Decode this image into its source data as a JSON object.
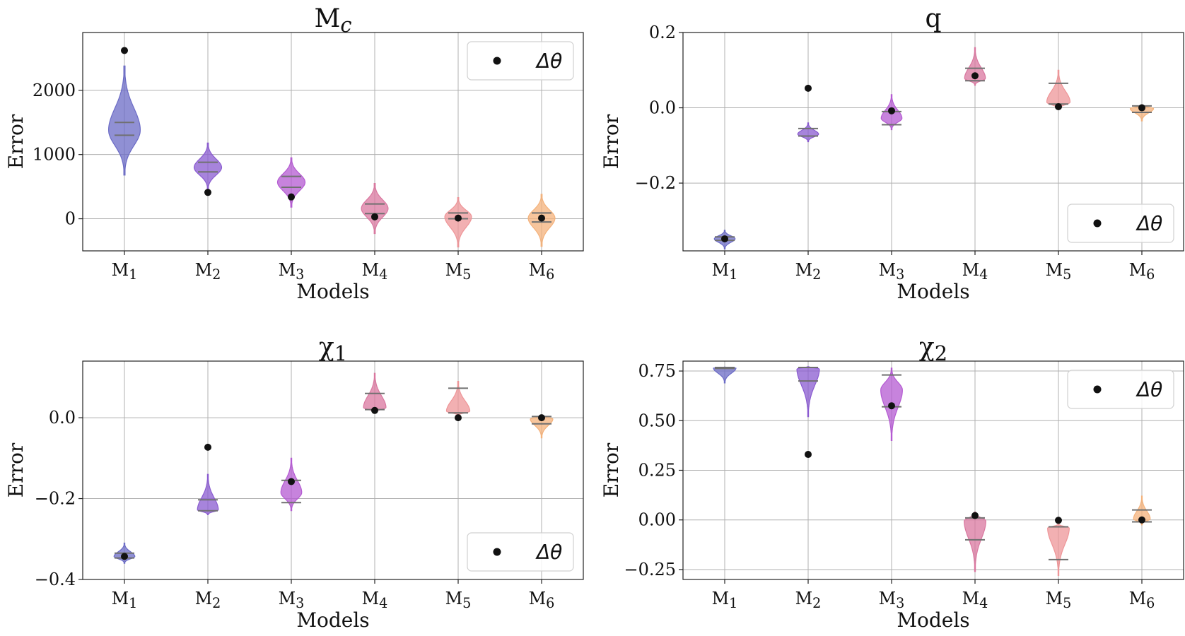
{
  "legend_label": "Δθ",
  "model_labels": [
    {
      "base": "M",
      "sub": "1"
    },
    {
      "base": "M",
      "sub": "2"
    },
    {
      "base": "M",
      "sub": "3"
    },
    {
      "base": "M",
      "sub": "4"
    },
    {
      "base": "M",
      "sub": "5"
    },
    {
      "base": "M",
      "sub": "6"
    }
  ],
  "colors": [
    "#6b6bc6",
    "#8a5bd0",
    "#b45ad2",
    "#d9779f",
    "#ee9598",
    "#f4b27b"
  ],
  "chart_data": [
    {
      "type": "violin",
      "title": {
        "base": "M",
        "sub": "c",
        "subItalic": true
      },
      "xlabel": "Models",
      "ylabel": "Error",
      "ylim": [
        -500,
        2900
      ],
      "yticks": [
        0,
        1000,
        2000
      ],
      "ytick_labels": [
        "0",
        "1000",
        "2000"
      ],
      "legend_position": "upper-right",
      "violins": [
        {
          "mode": 1380,
          "min": 680,
          "max": 2380,
          "q1": 1300,
          "q3": 1500,
          "width": 0.38
        },
        {
          "mode": 800,
          "min": 450,
          "max": 1180,
          "q1": 730,
          "q3": 880,
          "width": 0.33
        },
        {
          "mode": 570,
          "min": 180,
          "max": 950,
          "q1": 490,
          "q3": 660,
          "width": 0.33
        },
        {
          "mode": 160,
          "min": -230,
          "max": 550,
          "q1": 80,
          "q3": 230,
          "width": 0.32
        },
        {
          "mode": 30,
          "min": -440,
          "max": 330,
          "q1": 0,
          "q3": 90,
          "width": 0.32
        },
        {
          "mode": 10,
          "min": -430,
          "max": 380,
          "q1": -50,
          "q3": 90,
          "width": 0.32
        }
      ],
      "points": [
        2620,
        410,
        340,
        30,
        10,
        10
      ]
    },
    {
      "type": "violin",
      "title": {
        "base": "q",
        "sub": "",
        "subItalic": false
      },
      "xlabel": "Models",
      "ylabel": "Error",
      "ylim": [
        -0.38,
        0.2
      ],
      "yticks": [
        -0.2,
        0.0,
        0.2
      ],
      "ytick_labels": [
        "−0.2",
        "0.0",
        "0.2"
      ],
      "legend_position": "lower-right",
      "violins": [
        {
          "mode": -0.348,
          "min": -0.375,
          "max": -0.325,
          "q1": -0.352,
          "q3": -0.343,
          "width": 0.25
        },
        {
          "mode": -0.07,
          "min": -0.09,
          "max": -0.04,
          "q1": -0.075,
          "q3": -0.055,
          "width": 0.25
        },
        {
          "mode": -0.028,
          "min": -0.058,
          "max": 0.035,
          "q1": -0.045,
          "q3": -0.01,
          "width": 0.25
        },
        {
          "mode": 0.078,
          "min": 0.06,
          "max": 0.16,
          "q1": 0.072,
          "q3": 0.105,
          "width": 0.25
        },
        {
          "mode": 0.015,
          "min": -0.005,
          "max": 0.1,
          "q1": 0.01,
          "q3": 0.065,
          "width": 0.28
        },
        {
          "mode": -0.002,
          "min": -0.035,
          "max": 0.008,
          "q1": -0.012,
          "q3": 0.005,
          "width": 0.28
        }
      ],
      "points": [
        -0.348,
        0.052,
        -0.008,
        0.085,
        0.003,
        0.0
      ]
    },
    {
      "type": "violin",
      "title": {
        "base": "χ",
        "sub": "1",
        "subItalic": false
      },
      "xlabel": "Models",
      "ylabel": "Error",
      "ylim": [
        -0.4,
        0.14
      ],
      "yticks": [
        -0.4,
        -0.2,
        0.0
      ],
      "ytick_labels": [
        "−0.4",
        "−0.2",
        "0.0"
      ],
      "legend_position": "lower-right",
      "violins": [
        {
          "mode": -0.343,
          "min": -0.36,
          "max": -0.31,
          "q1": -0.347,
          "q3": -0.335,
          "width": 0.25
        },
        {
          "mode": -0.228,
          "min": -0.24,
          "max": -0.14,
          "q1": -0.23,
          "q3": -0.203,
          "width": 0.25
        },
        {
          "mode": -0.185,
          "min": -0.23,
          "max": -0.1,
          "q1": -0.21,
          "q3": -0.155,
          "width": 0.25
        },
        {
          "mode": 0.025,
          "min": 0.012,
          "max": 0.11,
          "q1": 0.02,
          "q3": 0.06,
          "width": 0.27
        },
        {
          "mode": 0.016,
          "min": 0.005,
          "max": 0.09,
          "q1": 0.012,
          "q3": 0.073,
          "width": 0.28
        },
        {
          "mode": -0.003,
          "min": -0.05,
          "max": 0.006,
          "q1": -0.015,
          "q3": 0.003,
          "width": 0.27
        }
      ],
      "points": [
        -0.343,
        -0.073,
        -0.158,
        0.018,
        0.0,
        0.0
      ]
    },
    {
      "type": "violin",
      "title": {
        "base": "χ",
        "sub": "2",
        "subItalic": false
      },
      "xlabel": "Models",
      "ylabel": "Error",
      "ylim": [
        -0.3,
        0.8
      ],
      "yticks": [
        -0.25,
        0.0,
        0.25,
        0.5,
        0.75
      ],
      "ytick_labels": [
        "−0.25",
        "0.00",
        "0.25",
        "0.50",
        "0.75"
      ],
      "legend_position": "upper-right",
      "violins": [
        {
          "mode": 0.765,
          "min": 0.69,
          "max": 0.77,
          "q1": 0.763,
          "q3": 0.768,
          "width": 0.27
        },
        {
          "mode": 0.762,
          "min": 0.52,
          "max": 0.772,
          "q1": 0.7,
          "q3": 0.768,
          "width": 0.27
        },
        {
          "mode": 0.655,
          "min": 0.4,
          "max": 0.765,
          "q1": 0.57,
          "q3": 0.73,
          "width": 0.26
        },
        {
          "mode": -0.005,
          "min": -0.26,
          "max": 0.04,
          "q1": -0.1,
          "q3": 0.01,
          "width": 0.26
        },
        {
          "mode": -0.04,
          "min": -0.28,
          "max": -0.02,
          "q1": -0.2,
          "q3": -0.035,
          "width": 0.26
        },
        {
          "mode": 0.005,
          "min": -0.025,
          "max": 0.12,
          "q1": -0.01,
          "q3": 0.05,
          "width": 0.2
        }
      ],
      "points": [
        null,
        0.33,
        0.575,
        0.022,
        -0.002,
        0.0
      ]
    }
  ]
}
